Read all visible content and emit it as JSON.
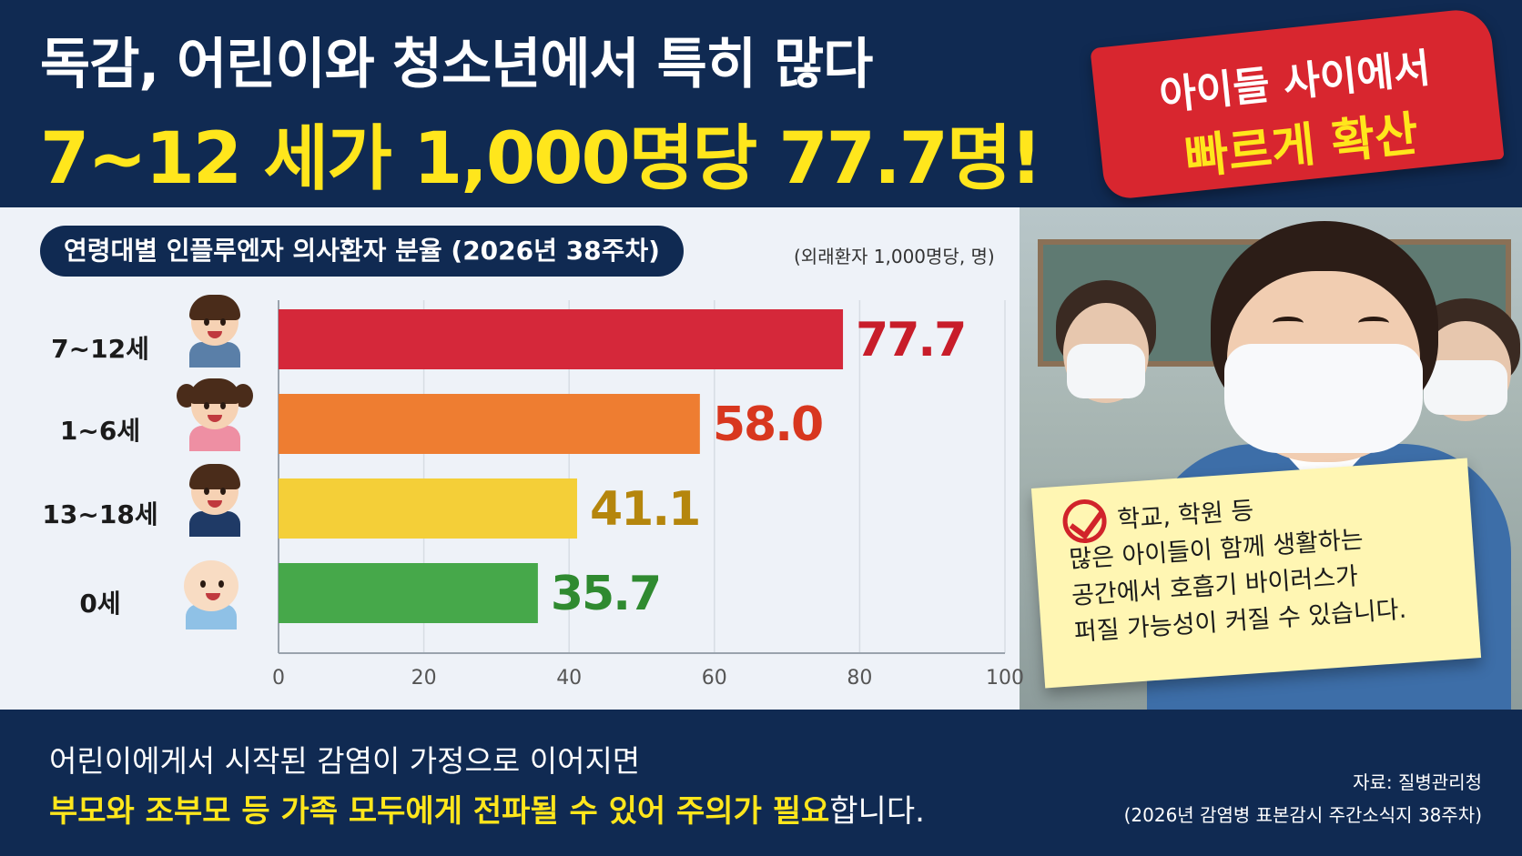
{
  "header": {
    "title": "독감, 어린이와 청소년에서 특히 많다",
    "subtitle": "7~12 세가 1,000명당 77.7명!"
  },
  "banner": {
    "line1": "아이들 사이에서",
    "line2": "빠르게 확산"
  },
  "note": {
    "lines": [
      "학교, 학원 등",
      "많은 아이들이 함께 생활하는",
      "공간에서 호흡기 바이러스가",
      "퍼질 가능성이 커질 수 있습니다."
    ]
  },
  "colors": {
    "navy": "#102a52",
    "yellow": "#ffe61c",
    "red_banner": "#d8262f"
  },
  "chart_data": {
    "type": "bar",
    "orientation": "horizontal",
    "title": "연령대별 인플루엔자 의사환자 분율 (2026년 38주차)",
    "unit": "(외래환자 1,000명당, 명)",
    "categories": [
      "7~12세",
      "1~6세",
      "13~18세",
      "0세"
    ],
    "values": [
      77.7,
      58.0,
      41.1,
      35.7
    ],
    "value_labels": [
      "77.7",
      "58.0",
      "41.1",
      "35.7"
    ],
    "bar_colors": [
      "#d5283a",
      "#ee7d31",
      "#f4cf38",
      "#46a84a"
    ],
    "label_colors": [
      "#c81d2a",
      "#d8371f",
      "#b5860d",
      "#2f8a30"
    ],
    "xlim": [
      0,
      100
    ],
    "xticks": [
      "0",
      "20",
      "40",
      "60",
      "80",
      "100"
    ],
    "grid": true,
    "avatar_icons": [
      "boy-child-icon",
      "girl-child-icon",
      "teen-student-icon",
      "baby-icon"
    ]
  },
  "footer": {
    "line1": "어린이에게서 시작된 감염이 가정으로 이어지면",
    "line2_highlight": "부모와 조부모 등 가족 모두에게 전파될 수 있어 주의가 필요",
    "line2_plain": "합니다.",
    "source1": "자료: 질병관리청",
    "source2": "(2026년 감염병 표본감시 주간소식지 38주차)"
  }
}
